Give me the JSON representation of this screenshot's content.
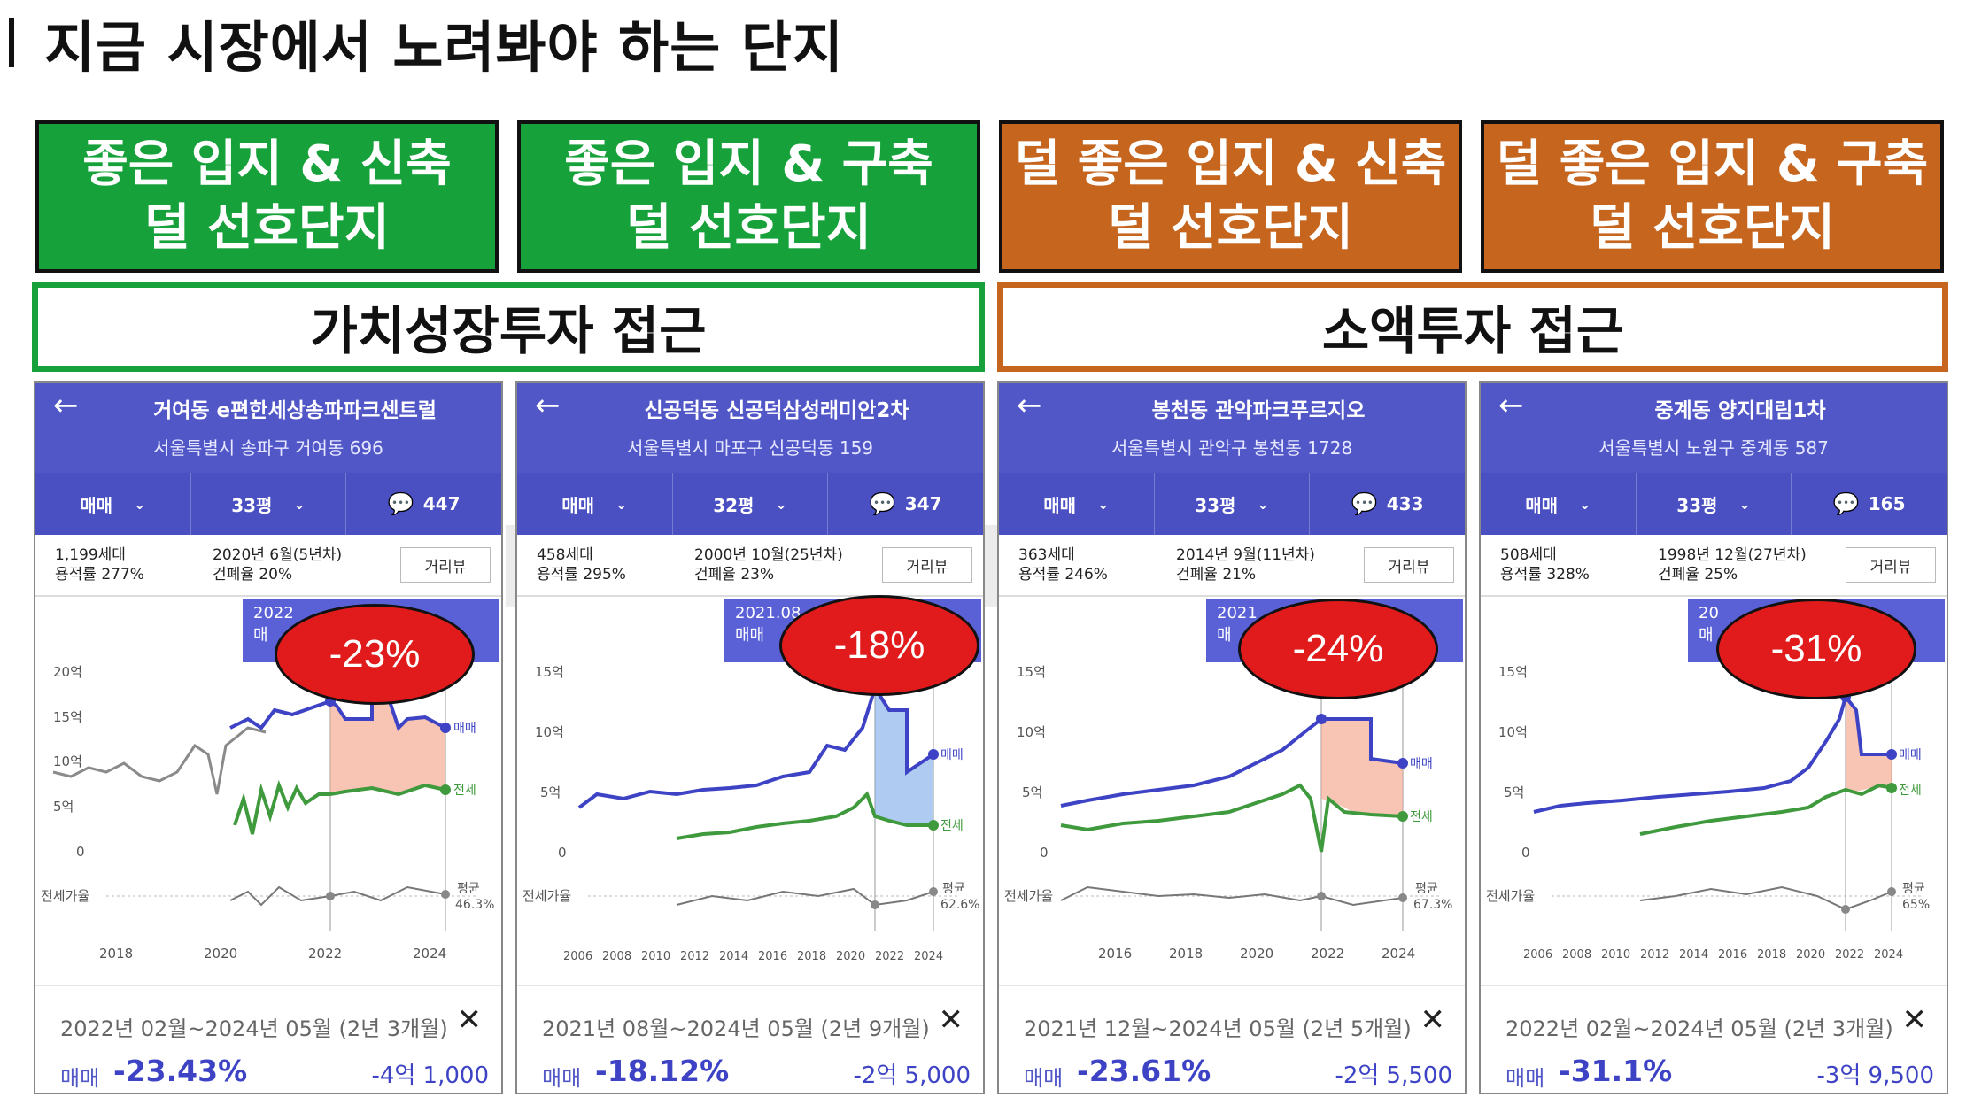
{
  "title": "지금 시장에서 노려봐야 하는 단지",
  "categories": [
    {
      "line1": "좋은 입지 & 신축",
      "line2": "덜 선호단지"
    },
    {
      "line1": "좋은 입지 & 구축",
      "line2": "덜 선호단지"
    },
    {
      "line1": "덜 좋은 입지 & 신축",
      "line2": "덜 선호단지"
    },
    {
      "line1": "덜 좋은 입지 & 구축",
      "line2": "덜 선호단지"
    }
  ],
  "approaches": [
    "가치성장투자 접근",
    "소액투자 접근"
  ],
  "colors": {
    "green": "#16a13a",
    "orange": "#c5651e",
    "header": "#5257c8",
    "sale": "#3d43c4",
    "jeonse": "#3f9a3d",
    "badge": "#e11b1b"
  },
  "panels": [
    {
      "name": "거여동 e편한세상송파파크센트럴",
      "address": "서울특별시 송파구 거여동 696",
      "tab_type": "매매",
      "tab_size": "33평",
      "comments": "447",
      "households": "1,199세대",
      "far": "용적률 277%",
      "built": "2020년 6월(5년차)",
      "bcr": "건폐율 20%",
      "distance_btn": "거리뷰",
      "tooltip_top": "2022",
      "tooltip_bottom": "매",
      "badge": "-23%",
      "y_ticks": [
        "20억",
        "15억",
        "10억",
        "5억",
        "0"
      ],
      "x_ticks": [
        "2018",
        "2020",
        "2022",
        "2024"
      ],
      "sale_label": "매매",
      "jeonse_label": "전세",
      "ratio_label": "전세가율",
      "avg_label": "평균",
      "avg_value": "46.3%",
      "period": "2022년 02월~2024년 05월 (2년 3개월)",
      "change_kind": "매매",
      "change_pct": "-23.43%",
      "change_amt": "-4억 1,000"
    },
    {
      "name": "신공덕동 신공덕삼성래미안2차",
      "address": "서울특별시 마포구 신공덕동 159",
      "tab_type": "매매",
      "tab_size": "32평",
      "comments": "347",
      "households": "458세대",
      "far": "용적률 295%",
      "built": "2000년 10월(25년차)",
      "bcr": "건폐율 23%",
      "distance_btn": "거리뷰",
      "tooltip_top": "2021.08",
      "tooltip_bottom": "매매",
      "badge": "-18%",
      "y_ticks": [
        "15억",
        "10억",
        "5억",
        "0"
      ],
      "x_ticks": [
        "2006",
        "2008",
        "2010",
        "2012",
        "2014",
        "2016",
        "2018",
        "2020",
        "2022",
        "2024"
      ],
      "sale_label": "매매",
      "jeonse_label": "전세",
      "ratio_label": "전세가율",
      "avg_label": "평균",
      "avg_value": "62.6%",
      "period": "2021년 08월~2024년 05월 (2년 9개월)",
      "change_kind": "매매",
      "change_pct": "-18.12%",
      "change_amt": "-2억 5,000"
    },
    {
      "name": "봉천동 관악파크푸르지오",
      "address": "서울특별시 관악구 봉천동 1728",
      "tab_type": "매매",
      "tab_size": "33평",
      "comments": "433",
      "households": "363세대",
      "far": "용적률 246%",
      "built": "2014년 9월(11년차)",
      "bcr": "건폐율 21%",
      "distance_btn": "거리뷰",
      "tooltip_top": "2021",
      "tooltip_bottom": "매",
      "badge": "-24%",
      "y_ticks": [
        "15억",
        "10억",
        "5억",
        "0"
      ],
      "x_ticks": [
        "2016",
        "2018",
        "2020",
        "2022",
        "2024"
      ],
      "sale_label": "매매",
      "jeonse_label": "전세",
      "ratio_label": "전세가율",
      "avg_label": "평균",
      "avg_value": "67.3%",
      "period": "2021년 12월~2024년 05월 (2년 5개월)",
      "change_kind": "매매",
      "change_pct": "-23.61%",
      "change_amt": "-2억 5,500"
    },
    {
      "name": "중계동 양지대림1차",
      "address": "서울특별시 노원구 중계동 587",
      "tab_type": "매매",
      "tab_size": "33평",
      "comments": "165",
      "households": "508세대",
      "far": "용적률 328%",
      "built": "1998년 12월(27년차)",
      "bcr": "건폐율 25%",
      "distance_btn": "거리뷰",
      "tooltip_top": "20",
      "tooltip_bottom": "매",
      "badge": "-31%",
      "y_ticks": [
        "15억",
        "10억",
        "5억",
        "0"
      ],
      "x_ticks": [
        "2006",
        "2008",
        "2010",
        "2012",
        "2014",
        "2016",
        "2018",
        "2020",
        "2022",
        "2024"
      ],
      "sale_label": "매매",
      "jeonse_label": "전세",
      "ratio_label": "전세가율",
      "avg_label": "평균",
      "avg_value": "65%",
      "period": "2022년 02월~2024년 05월 (2년 3개월)",
      "change_kind": "매매",
      "change_pct": "-31.1%",
      "change_amt": "-3억 9,500"
    }
  ]
}
